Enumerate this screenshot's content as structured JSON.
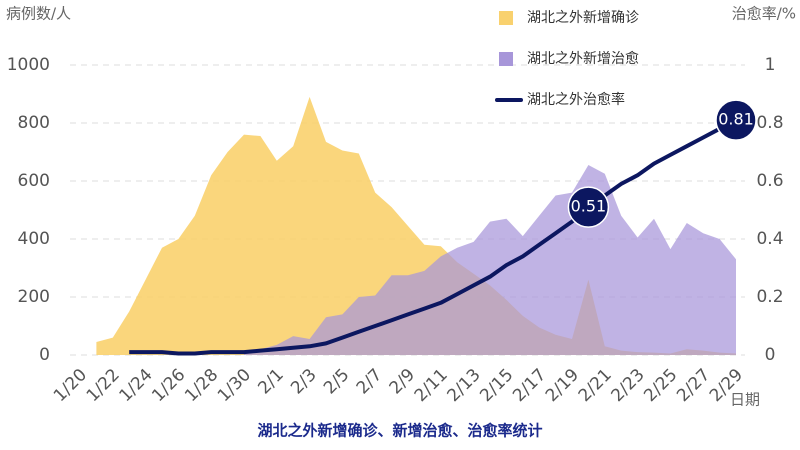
{
  "chart_data": {
    "type": "area",
    "title": "湖北之外新增确诊、新增治愈、治愈率统计",
    "y_label": "病例数/人",
    "y2_label": "治愈率/%",
    "x_label": "日期",
    "categories": [
      "1/20",
      null,
      "1/22",
      null,
      "1/24",
      null,
      "1/26",
      null,
      "1/28",
      null,
      "1/30",
      null,
      "2/1",
      null,
      "2/3",
      null,
      "2/5",
      null,
      "2/7",
      null,
      "2/9",
      null,
      "2/11",
      null,
      "2/13",
      null,
      "2/15",
      null,
      "2/17",
      null,
      "2/19",
      null,
      "2/21",
      null,
      "2/23",
      null,
      "2/25",
      null,
      "2/27",
      null,
      "2/29"
    ],
    "series": [
      {
        "name": "湖北之外新增确诊",
        "type": "area",
        "color": "#f9d16e",
        "values": [
          null,
          45,
          60,
          150,
          260,
          370,
          400,
          480,
          620,
          700,
          760,
          755,
          670,
          720,
          890,
          735,
          705,
          695,
          560,
          510,
          445,
          380,
          375,
          320,
          280,
          240,
          190,
          135,
          95,
          70,
          55,
          260,
          30,
          15,
          10,
          8,
          5,
          20,
          15,
          8,
          5
        ]
      },
      {
        "name": "湖北之外新增治愈",
        "type": "area",
        "color": "#a796d9",
        "values": [
          null,
          null,
          null,
          null,
          null,
          null,
          null,
          null,
          null,
          null,
          5,
          20,
          35,
          65,
          55,
          130,
          140,
          200,
          205,
          275,
          275,
          290,
          340,
          370,
          390,
          460,
          470,
          410,
          480,
          550,
          560,
          655,
          625,
          480,
          405,
          470,
          365,
          455,
          420,
          400,
          330
        ]
      },
      {
        "name": "湖北之外治愈率",
        "type": "line",
        "axis": "y2",
        "color": "#0c1760",
        "values": [
          null,
          null,
          null,
          0.01,
          0.01,
          0.01,
          0.005,
          0.005,
          0.01,
          0.01,
          0.01,
          0.015,
          0.02,
          0.025,
          0.03,
          0.04,
          0.06,
          0.08,
          0.1,
          0.12,
          0.14,
          0.16,
          0.18,
          0.21,
          0.24,
          0.27,
          0.31,
          0.34,
          0.38,
          0.42,
          0.46,
          0.51,
          0.55,
          0.59,
          0.62,
          0.66,
          0.69,
          0.72,
          0.75,
          0.78,
          0.81
        ],
        "labeled_indices": [
          31,
          40
        ]
      }
    ],
    "ylim": [
      0,
      1000
    ],
    "yticks": [
      0,
      200,
      400,
      600,
      800,
      1000
    ],
    "y2lim": [
      0,
      1
    ],
    "y2ticks": [
      0,
      0.2,
      0.4,
      0.6,
      0.8,
      1
    ],
    "grid": true,
    "legend": "upper center"
  }
}
